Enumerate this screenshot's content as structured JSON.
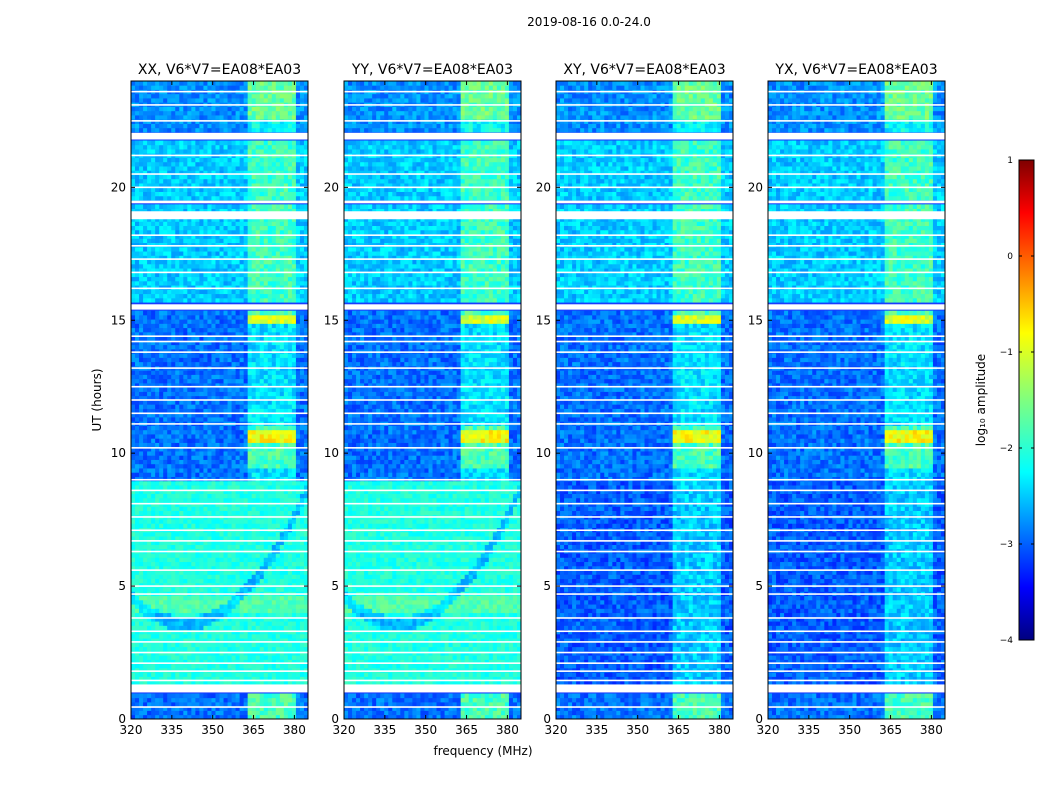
{
  "chart_data": {
    "type": "heatmap",
    "suptitle": "2019-08-16 0.0-24.0",
    "xlabel": "frequency (MHz)",
    "ylabel": "UT (hours)",
    "xlim": [
      320,
      385
    ],
    "ylim": [
      0,
      24
    ],
    "x_ticks": [
      320,
      335,
      350,
      365,
      380
    ],
    "y_ticks": [
      0,
      5,
      10,
      15,
      20
    ],
    "x_tick_labels": [
      "320",
      "335",
      "350",
      "365",
      "380"
    ],
    "y_tick_labels": [
      "0",
      "5",
      "10",
      "15",
      "20"
    ],
    "panels": [
      {
        "title": "XX, V6*V7=EA08*EA03",
        "pol": "XX"
      },
      {
        "title": "YY, V6*V7=EA08*EA03",
        "pol": "YY"
      },
      {
        "title": "XY, V6*V7=EA08*EA03",
        "pol": "XY"
      },
      {
        "title": "YX, V6*V7=EA08*EA03",
        "pol": "YX"
      }
    ],
    "colorbar": {
      "label": "log₁₀ amplitude",
      "range": [
        -4,
        1
      ],
      "ticks": [
        1,
        0,
        -1,
        -2,
        -3,
        -4
      ],
      "tick_labels": [
        "1",
        "0",
        "−1",
        "−2",
        "−3",
        "−4"
      ],
      "colormap": "jet"
    },
    "rfi_band_mhz": [
      363,
      381
    ]
  }
}
